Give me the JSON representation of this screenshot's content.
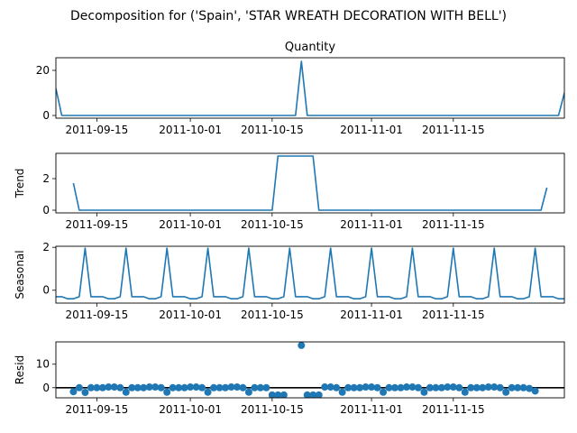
{
  "suptitle": "Decomposition for ('Spain', 'STAR WREATH DECORATION WITH BELL')",
  "chart_data": [
    {
      "type": "line",
      "title": "Quantity",
      "ylabel": "",
      "x_start": "2011-09-08",
      "x_end": "2011-12-04",
      "x_ticks": [
        "2011-09-15",
        "2011-10-01",
        "2011-10-15",
        "2011-11-01",
        "2011-11-15"
      ],
      "y_ticks": [
        0,
        20
      ],
      "ylim": [
        -1.2,
        25.6
      ],
      "color": "#1f77b4",
      "points": [
        [
          "2011-09-08",
          12
        ],
        [
          "2011-09-09",
          0
        ],
        [
          "2011-10-19",
          0
        ],
        [
          "2011-10-20",
          24
        ],
        [
          "2011-10-21",
          0
        ],
        [
          "2011-12-03",
          0
        ],
        [
          "2011-12-04",
          10
        ]
      ]
    },
    {
      "type": "line",
      "title": "",
      "ylabel": "Trend",
      "x_start": "2011-09-08",
      "x_end": "2011-12-04",
      "x_ticks": [
        "2011-09-15",
        "2011-10-01",
        "2011-10-15",
        "2011-11-01",
        "2011-11-15"
      ],
      "y_ticks": [
        0,
        2
      ],
      "ylim": [
        -0.17,
        3.6
      ],
      "color": "#1f77b4",
      "points": [
        [
          "2011-09-11",
          1.71
        ],
        [
          "2011-09-12",
          0
        ],
        [
          "2011-10-15",
          0
        ],
        [
          "2011-10-16",
          3.43
        ],
        [
          "2011-10-22",
          3.43
        ],
        [
          "2011-10-23",
          0
        ],
        [
          "2011-11-30",
          0
        ],
        [
          "2011-12-01",
          1.43
        ]
      ]
    },
    {
      "type": "line",
      "title": "",
      "ylabel": "Seasonal",
      "x_start": "2011-09-08",
      "x_end": "2011-12-04",
      "x_ticks": [
        "2011-09-15",
        "2011-10-01",
        "2011-10-15",
        "2011-11-01",
        "2011-11-15"
      ],
      "y_ticks": [
        0,
        2
      ],
      "ylim": [
        -0.6,
        2.05
      ],
      "color": "#1f77b4",
      "period_start": "2011-09-08",
      "period_pattern": [
        -0.3,
        -0.3,
        -0.4,
        -0.4,
        -0.3,
        1.96,
        -0.3
      ]
    },
    {
      "type": "scatter",
      "title": "",
      "ylabel": "Resid",
      "x_start": "2011-09-08",
      "x_end": "2011-12-04",
      "x_ticks": [
        "2011-09-15",
        "2011-10-01",
        "2011-10-15",
        "2011-11-01",
        "2011-11-15"
      ],
      "y_ticks": [
        0,
        10
      ],
      "ylim": [
        -4.3,
        19.5
      ],
      "zero_line": true,
      "color": "#1f77b4",
      "points": [
        [
          "2011-09-11",
          -1.7
        ],
        [
          "2011-09-12",
          0.0
        ],
        [
          "2011-09-13",
          -2.0
        ],
        [
          "2011-09-14",
          0.0
        ],
        [
          "2011-09-15",
          0.0
        ],
        [
          "2011-09-16",
          0.0
        ],
        [
          "2011-09-17",
          0.3
        ],
        [
          "2011-09-18",
          0.3
        ],
        [
          "2011-09-19",
          0.0
        ],
        [
          "2011-09-20",
          -1.9
        ],
        [
          "2011-09-21",
          0.0
        ],
        [
          "2011-09-22",
          0.0
        ],
        [
          "2011-09-23",
          0.0
        ],
        [
          "2011-09-24",
          0.3
        ],
        [
          "2011-09-25",
          0.3
        ],
        [
          "2011-09-26",
          0.0
        ],
        [
          "2011-09-27",
          -1.9
        ],
        [
          "2011-09-28",
          0.0
        ],
        [
          "2011-09-29",
          0.0
        ],
        [
          "2011-09-30",
          0.0
        ],
        [
          "2011-10-01",
          0.3
        ],
        [
          "2011-10-02",
          0.3
        ],
        [
          "2011-10-03",
          0.0
        ],
        [
          "2011-10-04",
          -1.9
        ],
        [
          "2011-10-05",
          0.0
        ],
        [
          "2011-10-06",
          0.0
        ],
        [
          "2011-10-07",
          0.0
        ],
        [
          "2011-10-08",
          0.3
        ],
        [
          "2011-10-09",
          0.3
        ],
        [
          "2011-10-10",
          0.0
        ],
        [
          "2011-10-11",
          -1.9
        ],
        [
          "2011-10-12",
          0.0
        ],
        [
          "2011-10-13",
          0.0
        ],
        [
          "2011-10-14",
          0.0
        ],
        [
          "2011-10-15",
          -3.1
        ],
        [
          "2011-10-16",
          -3.1
        ],
        [
          "2011-10-17",
          -3.1
        ],
        [
          "2011-10-20",
          18.0
        ],
        [
          "2011-10-21",
          -3.1
        ],
        [
          "2011-10-22",
          -3.1
        ],
        [
          "2011-10-23",
          -3.1
        ],
        [
          "2011-10-24",
          0.3
        ],
        [
          "2011-10-25",
          0.3
        ],
        [
          "2011-10-26",
          0.0
        ],
        [
          "2011-10-27",
          -1.9
        ],
        [
          "2011-10-28",
          0.0
        ],
        [
          "2011-10-29",
          0.0
        ],
        [
          "2011-10-30",
          0.0
        ],
        [
          "2011-10-31",
          0.3
        ],
        [
          "2011-11-01",
          0.3
        ],
        [
          "2011-11-02",
          0.0
        ],
        [
          "2011-11-03",
          -1.9
        ],
        [
          "2011-11-04",
          0.0
        ],
        [
          "2011-11-05",
          0.0
        ],
        [
          "2011-11-06",
          0.0
        ],
        [
          "2011-11-07",
          0.3
        ],
        [
          "2011-11-08",
          0.3
        ],
        [
          "2011-11-09",
          0.0
        ],
        [
          "2011-11-10",
          -1.9
        ],
        [
          "2011-11-11",
          0.0
        ],
        [
          "2011-11-12",
          0.0
        ],
        [
          "2011-11-13",
          0.0
        ],
        [
          "2011-11-14",
          0.3
        ],
        [
          "2011-11-15",
          0.3
        ],
        [
          "2011-11-16",
          0.0
        ],
        [
          "2011-11-17",
          -1.9
        ],
        [
          "2011-11-18",
          0.0
        ],
        [
          "2011-11-19",
          0.0
        ],
        [
          "2011-11-20",
          0.0
        ],
        [
          "2011-11-21",
          0.3
        ],
        [
          "2011-11-22",
          0.3
        ],
        [
          "2011-11-23",
          0.0
        ],
        [
          "2011-11-24",
          -1.9
        ],
        [
          "2011-11-25",
          0.0
        ],
        [
          "2011-11-26",
          0.0
        ],
        [
          "2011-11-27",
          0.0
        ],
        [
          "2011-11-28",
          -0.3
        ],
        [
          "2011-11-29",
          -1.4
        ]
      ]
    }
  ]
}
